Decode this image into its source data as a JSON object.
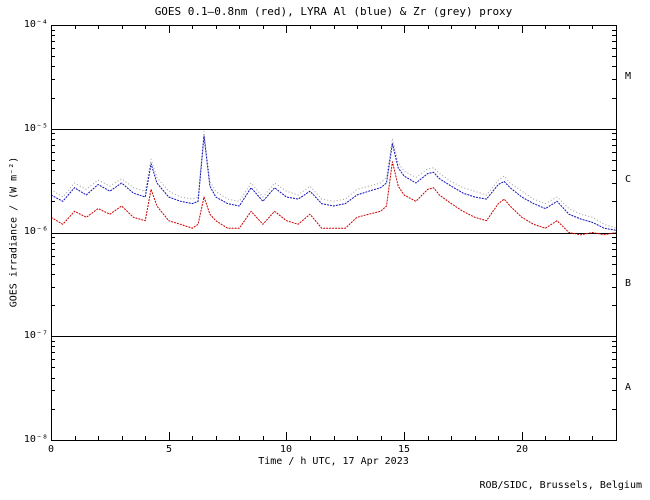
{
  "page": {
    "footer": "ROB/SIDC, Brussels, Belgium",
    "background": "#ffffff"
  },
  "chart_data": {
    "type": "line",
    "title": "GOES 0.1–0.8nm (red), LYRA Al (blue) & Zr (grey) proxy",
    "xlabel": "Time / h UTC, 17 Apr 2023",
    "ylabel": "GOES irradiance / (W m⁻²)",
    "x_range": [
      0,
      24
    ],
    "x_minor_step": 1,
    "x_major_ticks": [
      0,
      5,
      10,
      15,
      20
    ],
    "x_tick_labels": [
      "0",
      "5",
      "10",
      "15",
      "20"
    ],
    "y_scale": "log",
    "y_range_exp": [
      -8,
      -4
    ],
    "y_tick_labels": [
      "10⁻⁴",
      "10⁻⁵",
      "10⁻⁶",
      "10⁻⁷",
      "10⁻⁸"
    ],
    "hline_exponents": [
      -5,
      -6,
      -7
    ],
    "class_labels": [
      "M",
      "C",
      "B",
      "A"
    ],
    "grid": false,
    "legend_position": "in-title",
    "x": [
      0,
      0.5,
      1,
      1.5,
      2,
      2.5,
      3,
      3.5,
      4,
      4.25,
      4.5,
      5,
      5.5,
      6,
      6.25,
      6.5,
      6.75,
      7,
      7.5,
      8,
      8.5,
      9,
      9.5,
      10,
      10.5,
      11,
      11.5,
      12,
      12.5,
      13,
      13.5,
      14,
      14.25,
      14.5,
      14.75,
      15,
      15.5,
      16,
      16.25,
      16.5,
      17,
      17.5,
      18,
      18.5,
      19,
      19.25,
      19.5,
      20,
      20.5,
      21,
      21.5,
      22,
      22.5,
      23,
      23.5,
      24
    ],
    "series": [
      {
        "name": "GOES 0.1-0.8nm",
        "color": "#cc0000",
        "dash": "2,1",
        "values": [
          1.4e-06,
          1.2e-06,
          1.6e-06,
          1.4e-06,
          1.7e-06,
          1.5e-06,
          1.8e-06,
          1.4e-06,
          1.3e-06,
          2.6e-06,
          1.8e-06,
          1.3e-06,
          1.2e-06,
          1.1e-06,
          1.2e-06,
          2.2e-06,
          1.5e-06,
          1.3e-06,
          1.1e-06,
          1.1e-06,
          1.6e-06,
          1.2e-06,
          1.6e-06,
          1.3e-06,
          1.2e-06,
          1.5e-06,
          1.1e-06,
          1.1e-06,
          1.1e-06,
          1.4e-06,
          1.5e-06,
          1.6e-06,
          1.8e-06,
          4.8e-06,
          2.8e-06,
          2.3e-06,
          2e-06,
          2.6e-06,
          2.7e-06,
          2.3e-06,
          1.9e-06,
          1.6e-06,
          1.4e-06,
          1.3e-06,
          1.9e-06,
          2.1e-06,
          1.8e-06,
          1.4e-06,
          1.2e-06,
          1.1e-06,
          1.3e-06,
          1e-06,
          9.5e-07,
          1e-06,
          9.5e-07,
          1e-06
        ]
      },
      {
        "name": "LYRA Al proxy",
        "color": "#1111bb",
        "dash": "2,1",
        "values": [
          2.3e-06,
          2e-06,
          2.7e-06,
          2.3e-06,
          2.9e-06,
          2.5e-06,
          3e-06,
          2.4e-06,
          2.2e-06,
          4.6e-06,
          3e-06,
          2.2e-06,
          2e-06,
          1.9e-06,
          2e-06,
          8.5e-06,
          2.8e-06,
          2.2e-06,
          1.9e-06,
          1.8e-06,
          2.7e-06,
          2e-06,
          2.7e-06,
          2.2e-06,
          2.1e-06,
          2.5e-06,
          1.9e-06,
          1.8e-06,
          1.9e-06,
          2.3e-06,
          2.5e-06,
          2.7e-06,
          3e-06,
          7.2e-06,
          4.2e-06,
          3.5e-06,
          3e-06,
          3.7e-06,
          3.8e-06,
          3.3e-06,
          2.8e-06,
          2.4e-06,
          2.2e-06,
          2.1e-06,
          2.9e-06,
          3.1e-06,
          2.7e-06,
          2.2e-06,
          1.9e-06,
          1.7e-06,
          2e-06,
          1.5e-06,
          1.35e-06,
          1.25e-06,
          1.1e-06,
          1.05e-06
        ]
      },
      {
        "name": "LYRA Zr proxy",
        "color": "#9a9a9a",
        "dash": "1,2.2",
        "values": [
          2.6e-06,
          2.2e-06,
          3e-06,
          2.6e-06,
          3.2e-06,
          2.8e-06,
          3.3e-06,
          2.7e-06,
          2.5e-06,
          5.1e-06,
          3.4e-06,
          2.5e-06,
          2.2e-06,
          2.1e-06,
          2.2e-06,
          9.4e-06,
          3.1e-06,
          2.5e-06,
          2.1e-06,
          2e-06,
          3e-06,
          2.2e-06,
          3e-06,
          2.5e-06,
          2.3e-06,
          2.8e-06,
          2.1e-06,
          2e-06,
          2.1e-06,
          2.6e-06,
          2.8e-06,
          3e-06,
          3.4e-06,
          8e-06,
          4.7e-06,
          3.9e-06,
          3.4e-06,
          4.1e-06,
          4.2e-06,
          3.7e-06,
          3.1e-06,
          2.7e-06,
          2.5e-06,
          2.3e-06,
          3.2e-06,
          3.5e-06,
          3e-06,
          2.5e-06,
          2.1e-06,
          1.9e-06,
          2.2e-06,
          1.7e-06,
          1.5e-06,
          1.4e-06,
          1.2e-06,
          1.1e-06
        ]
      }
    ]
  }
}
